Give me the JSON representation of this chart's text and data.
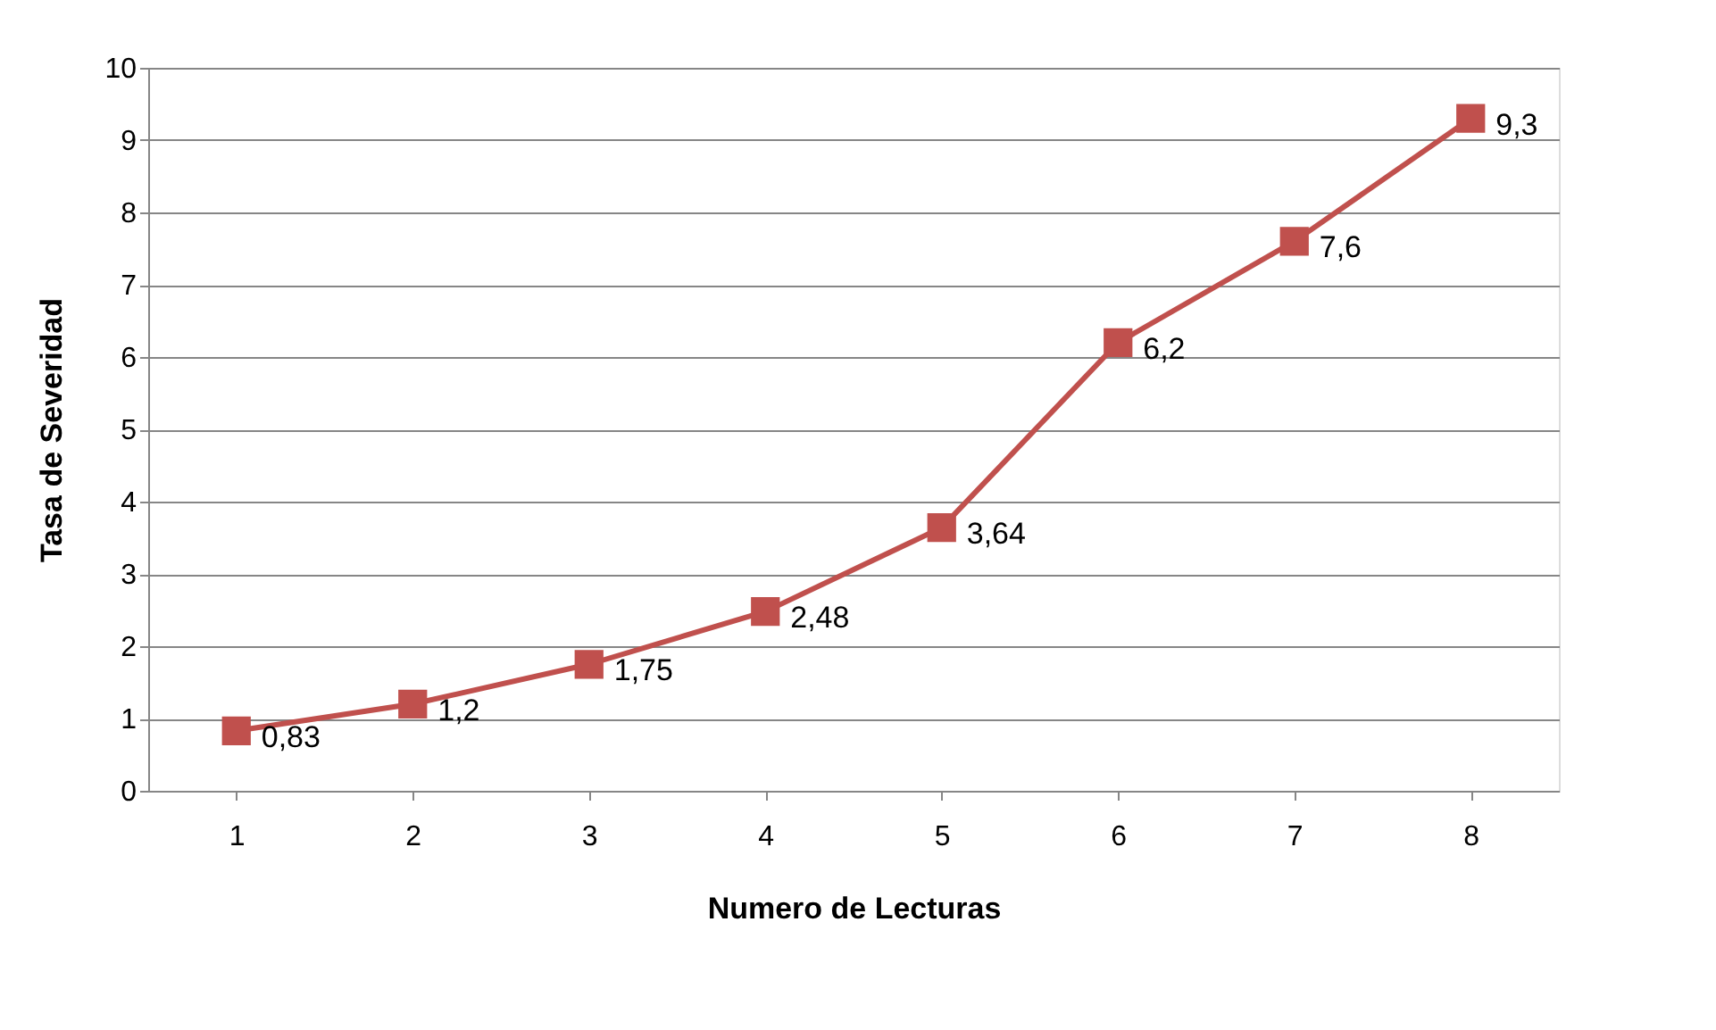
{
  "chart_data": {
    "type": "line",
    "xlabel": "Numero de Lecturas",
    "ylabel": "Tasa de Severidad",
    "categories": [
      "1",
      "2",
      "3",
      "4",
      "5",
      "6",
      "7",
      "8"
    ],
    "values": [
      0.83,
      1.2,
      1.75,
      2.48,
      3.64,
      6.2,
      7.6,
      9.3
    ],
    "value_labels": [
      "0,83",
      "1,2",
      "1,75",
      "2,48",
      "3,64",
      "6,2",
      "7,6",
      "9,3"
    ],
    "color": "#c0504d",
    "marker": "square",
    "line_style": "solid",
    "ylim": [
      0,
      10
    ],
    "yticks": [
      0,
      1,
      2,
      3,
      4,
      5,
      6,
      7,
      8,
      9,
      10
    ],
    "grid": "y",
    "legend": false
  }
}
